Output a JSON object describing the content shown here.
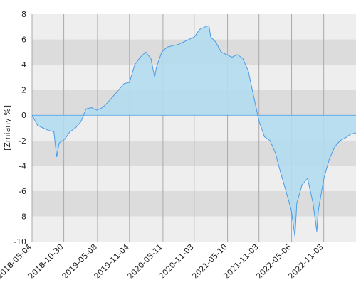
{
  "chart_data": {
    "type": "area",
    "y_label": "[Zmiany %]",
    "x": [
      "2018-05-04",
      "2018-06-04",
      "2018-07-04",
      "2018-08-04",
      "2018-09-04",
      "2018-09-20",
      "2018-10-04",
      "2018-11-04",
      "2018-12-04",
      "2019-01-04",
      "2019-02-04",
      "2019-03-04",
      "2019-04-04",
      "2019-05-04",
      "2019-06-04",
      "2019-07-04",
      "2019-08-04",
      "2019-09-04",
      "2019-10-04",
      "2019-11-04",
      "2019-12-04",
      "2020-01-04",
      "2020-02-04",
      "2020-03-04",
      "2020-03-25",
      "2020-04-04",
      "2020-05-04",
      "2020-06-04",
      "2020-07-04",
      "2020-08-04",
      "2020-09-04",
      "2020-10-04",
      "2020-11-04",
      "2020-12-04",
      "2021-01-04",
      "2021-01-25",
      "2021-02-04",
      "2021-03-04",
      "2021-04-04",
      "2021-05-04",
      "2021-06-04",
      "2021-07-04",
      "2021-08-04",
      "2021-09-04",
      "2021-10-04",
      "2021-11-04",
      "2021-12-04",
      "2022-01-04",
      "2022-02-04",
      "2022-03-04",
      "2022-04-04",
      "2022-05-04",
      "2022-05-25",
      "2022-06-04",
      "2022-07-04",
      "2022-08-04",
      "2022-09-04",
      "2022-09-25",
      "2022-10-04",
      "2022-11-04",
      "2022-12-04",
      "2023-01-04",
      "2023-02-04",
      "2023-03-04",
      "2023-04-04",
      "2023-05-04"
    ],
    "series": [
      {
        "color": "#4a9be8",
        "fill": "#b3dcef",
        "values": [
          0,
          -0.8,
          -1.0,
          -1.2,
          -1.3,
          -3.3,
          -2.2,
          -1.9,
          -1.3,
          -1.0,
          -0.5,
          0.5,
          0.6,
          0.4,
          0.6,
          1.0,
          1.5,
          2.0,
          2.5,
          2.6,
          4.0,
          4.6,
          5.0,
          4.5,
          3.0,
          3.8,
          5.0,
          5.4,
          5.5,
          5.6,
          5.8,
          6.0,
          6.2,
          6.8,
          7.0,
          7.1,
          6.2,
          5.8,
          5.0,
          4.8,
          4.6,
          4.8,
          4.5,
          3.5,
          1.5,
          -0.5,
          -1.7,
          -2.0,
          -3.0,
          -4.5,
          -6.0,
          -7.5,
          -9.6,
          -7.0,
          -5.5,
          -5.0,
          -7.0,
          -9.2,
          -7.5,
          -5.0,
          -3.5,
          -2.5,
          -2.0,
          -1.8,
          -1.5,
          -1.4
        ]
      }
    ],
    "xlim": [
      "2018-05-04",
      "2023-05-04"
    ],
    "xticks": [
      "2018-05-04",
      "2018-10-30",
      "2019-05-08",
      "2019-11-04",
      "2020-05-11",
      "2020-11-03",
      "2021-05-10",
      "2021-11-03",
      "2022-05-06",
      "2022-11-03"
    ],
    "ylim": [
      -10,
      8
    ],
    "yticks": [
      -10,
      -8,
      -6,
      -4,
      -2,
      0,
      2,
      4,
      6,
      8
    ],
    "grid": true
  }
}
